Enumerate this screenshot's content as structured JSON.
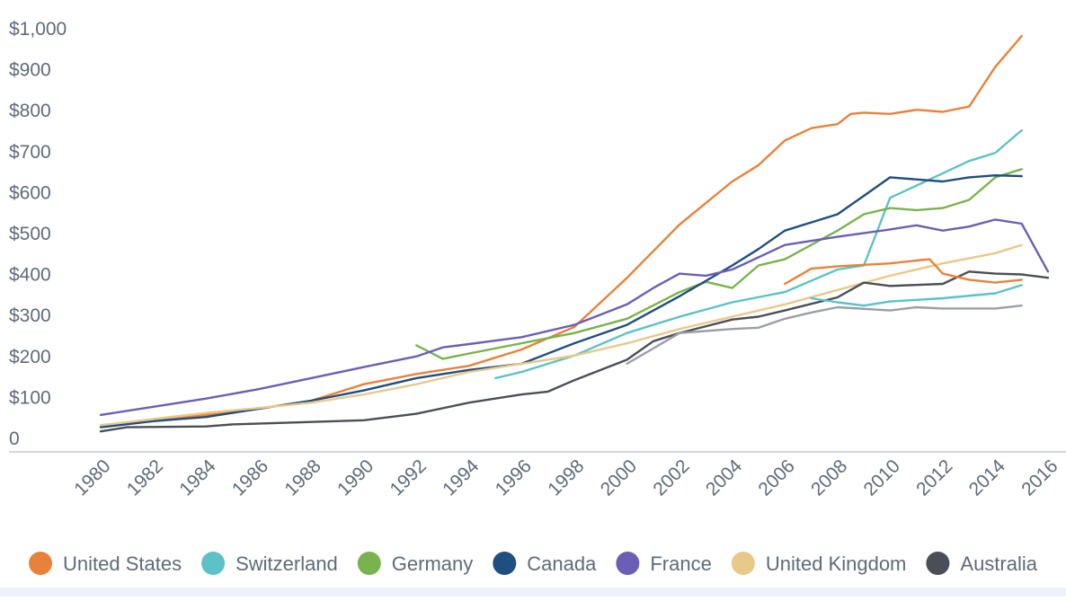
{
  "chart_data": {
    "type": "line",
    "title": "",
    "xlabel": "",
    "ylabel": "",
    "x_ticks": [
      "1980",
      "1982",
      "1984",
      "1986",
      "1988",
      "1990",
      "1992",
      "1994",
      "1996",
      "1998",
      "2000",
      "2002",
      "2004",
      "2006",
      "2008",
      "2010",
      "2012",
      "2014",
      "2016"
    ],
    "y_ticks": [
      {
        "value": 0,
        "label": "0"
      },
      {
        "value": 100,
        "label": "$100"
      },
      {
        "value": 200,
        "label": "$200"
      },
      {
        "value": 300,
        "label": "$300"
      },
      {
        "value": 400,
        "label": "$400"
      },
      {
        "value": 500,
        "label": "$500"
      },
      {
        "value": 600,
        "label": "$600"
      },
      {
        "value": 700,
        "label": "$700"
      },
      {
        "value": 800,
        "label": "$800"
      },
      {
        "value": 900,
        "label": "$900"
      },
      {
        "value": 1000,
        "label": "$1,000"
      }
    ],
    "xlim": [
      1980,
      2016
    ],
    "ylim": [
      0,
      1000
    ],
    "grid": false,
    "legend_position": "bottom",
    "series": [
      {
        "name": "United States",
        "color": "#e8823a",
        "points": [
          [
            1980,
            30
          ],
          [
            1982,
            43
          ],
          [
            1984,
            55
          ],
          [
            1986,
            70
          ],
          [
            1988,
            90
          ],
          [
            1990,
            130
          ],
          [
            1992,
            155
          ],
          [
            1994,
            175
          ],
          [
            1996,
            215
          ],
          [
            1998,
            270
          ],
          [
            2000,
            390
          ],
          [
            2002,
            520
          ],
          [
            2004,
            625
          ],
          [
            2005,
            665
          ],
          [
            2006,
            725
          ],
          [
            2007,
            755
          ],
          [
            2008,
            765
          ],
          [
            2008.5,
            790
          ],
          [
            2009,
            793
          ],
          [
            2010,
            790
          ],
          [
            2011,
            800
          ],
          [
            2012,
            795
          ],
          [
            2013,
            808
          ],
          [
            2014,
            905
          ],
          [
            2015,
            980
          ]
        ]
      },
      {
        "name": "Switzerland",
        "color": "#5cc2c6",
        "points": [
          [
            1995,
            145
          ],
          [
            1996,
            160
          ],
          [
            1998,
            200
          ],
          [
            2000,
            255
          ],
          [
            2002,
            295
          ],
          [
            2004,
            330
          ],
          [
            2006,
            355
          ],
          [
            2008,
            410
          ],
          [
            2009,
            420
          ],
          [
            2010,
            585
          ],
          [
            2011,
            615
          ],
          [
            2012,
            645
          ],
          [
            2013,
            675
          ],
          [
            2014,
            695
          ],
          [
            2015,
            750
          ]
        ]
      },
      {
        "name": "Germany",
        "color": "#7ab34e",
        "points": [
          [
            1992,
            225
          ],
          [
            1993,
            192
          ],
          [
            1994,
            205
          ],
          [
            1996,
            230
          ],
          [
            1998,
            255
          ],
          [
            2000,
            290
          ],
          [
            2002,
            355
          ],
          [
            2003,
            380
          ],
          [
            2004,
            365
          ],
          [
            2005,
            420
          ],
          [
            2006,
            435
          ],
          [
            2008,
            505
          ],
          [
            2009,
            545
          ],
          [
            2010,
            560
          ],
          [
            2011,
            555
          ],
          [
            2012,
            560
          ],
          [
            2013,
            580
          ],
          [
            2014,
            635
          ],
          [
            2015,
            655
          ]
        ]
      },
      {
        "name": "Canada",
        "color": "#1f4e80",
        "points": [
          [
            1980,
            25
          ],
          [
            1982,
            40
          ],
          [
            1984,
            50
          ],
          [
            1986,
            70
          ],
          [
            1988,
            90
          ],
          [
            1990,
            115
          ],
          [
            1992,
            145
          ],
          [
            1994,
            165
          ],
          [
            1996,
            180
          ],
          [
            1998,
            230
          ],
          [
            2000,
            275
          ],
          [
            2002,
            345
          ],
          [
            2004,
            420
          ],
          [
            2005,
            460
          ],
          [
            2006,
            505
          ],
          [
            2007,
            525
          ],
          [
            2008,
            545
          ],
          [
            2009,
            590
          ],
          [
            2010,
            635
          ],
          [
            2011,
            630
          ],
          [
            2012,
            625
          ],
          [
            2013,
            635
          ],
          [
            2014,
            640
          ],
          [
            2015,
            638
          ]
        ]
      },
      {
        "name": "France",
        "color": "#6b5fb5",
        "points": [
          [
            1980,
            55
          ],
          [
            1982,
            75
          ],
          [
            1984,
            95
          ],
          [
            1986,
            118
          ],
          [
            1988,
            145
          ],
          [
            1990,
            172
          ],
          [
            1992,
            198
          ],
          [
            1993,
            220
          ],
          [
            1994,
            228
          ],
          [
            1996,
            245
          ],
          [
            1998,
            275
          ],
          [
            2000,
            325
          ],
          [
            2001,
            365
          ],
          [
            2002,
            400
          ],
          [
            2003,
            395
          ],
          [
            2004,
            410
          ],
          [
            2006,
            470
          ],
          [
            2008,
            490
          ],
          [
            2010,
            508
          ],
          [
            2011,
            518
          ],
          [
            2012,
            505
          ],
          [
            2013,
            515
          ],
          [
            2014,
            532
          ],
          [
            2015,
            522
          ],
          [
            2016,
            405
          ]
        ]
      },
      {
        "name": "United Kingdom",
        "color": "#e8c98a",
        "points": [
          [
            1980,
            30
          ],
          [
            1982,
            45
          ],
          [
            1984,
            60
          ],
          [
            1986,
            72
          ],
          [
            1988,
            85
          ],
          [
            1990,
            105
          ],
          [
            1992,
            130
          ],
          [
            1994,
            160
          ],
          [
            1996,
            180
          ],
          [
            1998,
            200
          ],
          [
            2000,
            230
          ],
          [
            2002,
            265
          ],
          [
            2004,
            295
          ],
          [
            2006,
            325
          ],
          [
            2008,
            360
          ],
          [
            2010,
            395
          ],
          [
            2012,
            425
          ],
          [
            2014,
            450
          ],
          [
            2015,
            470
          ]
        ]
      },
      {
        "name": "Australia",
        "color": "#4a4f57",
        "points": [
          [
            1980,
            15
          ],
          [
            1981,
            25
          ],
          [
            1984,
            27
          ],
          [
            1985,
            32
          ],
          [
            1988,
            38
          ],
          [
            1990,
            42
          ],
          [
            1992,
            58
          ],
          [
            1994,
            85
          ],
          [
            1996,
            105
          ],
          [
            1997,
            112
          ],
          [
            1998,
            140
          ],
          [
            2000,
            190
          ],
          [
            2001,
            235
          ],
          [
            2002,
            255
          ],
          [
            2004,
            288
          ],
          [
            2005,
            295
          ],
          [
            2006,
            310
          ],
          [
            2008,
            342
          ],
          [
            2009,
            378
          ],
          [
            2010,
            370
          ],
          [
            2012,
            375
          ],
          [
            2013,
            405
          ],
          [
            2014,
            400
          ],
          [
            2015,
            398
          ],
          [
            2016,
            390
          ]
        ]
      },
      {
        "name": "",
        "color": "#9a9ea6",
        "points": [
          [
            2000,
            180
          ],
          [
            2002,
            255
          ],
          [
            2004,
            265
          ],
          [
            2005,
            268
          ],
          [
            2006,
            290
          ],
          [
            2007,
            305
          ],
          [
            2008,
            318
          ],
          [
            2010,
            310
          ],
          [
            2011,
            318
          ],
          [
            2012,
            315
          ],
          [
            2014,
            315
          ],
          [
            2015,
            322
          ]
        ]
      },
      {
        "name": "",
        "color": "#e8823a",
        "points": [
          [
            2006,
            375
          ],
          [
            2007,
            412
          ],
          [
            2008,
            418
          ],
          [
            2010,
            425
          ],
          [
            2011,
            432
          ],
          [
            2011.5,
            435
          ],
          [
            2012,
            400
          ],
          [
            2013,
            385
          ],
          [
            2014,
            378
          ],
          [
            2015,
            385
          ]
        ]
      },
      {
        "name": "",
        "color": "#5cc2c6",
        "points": [
          [
            2007,
            340
          ],
          [
            2008,
            330
          ],
          [
            2009,
            322
          ],
          [
            2010,
            332
          ],
          [
            2012,
            340
          ],
          [
            2014,
            352
          ],
          [
            2015,
            372
          ]
        ]
      }
    ]
  }
}
